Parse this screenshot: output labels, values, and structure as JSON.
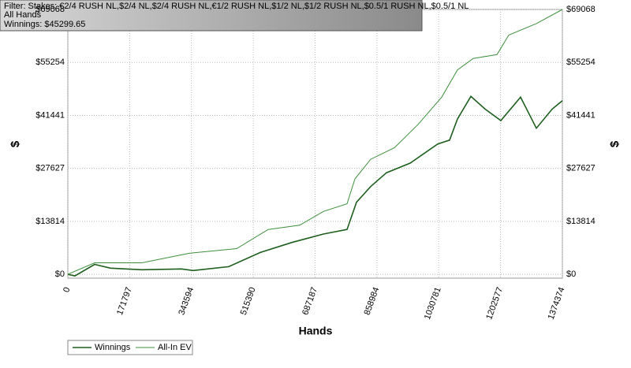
{
  "chart_data": {
    "type": "line",
    "filter_lines": [
      "Filter: Stakes: €2/4 RUSH NL,$2/4 NL,$2/4 RUSH NL,€1/2 RUSH NL,$1/2 NL,$1/2 RUSH NL,$0.5/1 RUSH NL,$0.5/1 NL",
      "All Hands",
      "Winnings: $45299.65"
    ],
    "x_label": "Hands",
    "y_label": "$",
    "y2_label": "$",
    "xlim": [
      0,
      1374374
    ],
    "xticks": [
      0,
      171797,
      343594,
      515390,
      687187,
      858984,
      1030781,
      1202577,
      1374374
    ],
    "ylim": [
      -1000,
      69068
    ],
    "yticks": [
      {
        "value": 0,
        "label": "$0"
      },
      {
        "value": 13814,
        "label": "$13814"
      },
      {
        "value": 27627,
        "label": "$27627"
      },
      {
        "value": 41441,
        "label": "$41441"
      },
      {
        "value": 55254,
        "label": "$55254"
      },
      {
        "value": 69068,
        "label": "$69068"
      }
    ],
    "grid": true,
    "series": [
      {
        "name": "Winnings",
        "color": "#1e5e1e",
        "width": 1.6,
        "x": [
          0,
          19700,
          74600,
          118500,
          206100,
          315700,
          348600,
          447200,
          534900,
          622600,
          710300,
          776000,
          802300,
          841800,
          885600,
          951400,
          1028100,
          1061000,
          1082900,
          1120200,
          1159600,
          1203500,
          1258300,
          1302100,
          1346000,
          1374374
        ],
        "values": [
          0,
          -400,
          2600,
          1600,
          1200,
          1400,
          1000,
          2000,
          5700,
          8300,
          10500,
          11700,
          18800,
          22900,
          26500,
          29000,
          34000,
          35000,
          40500,
          46400,
          43100,
          40100,
          46200,
          38100,
          43100,
          45300
        ]
      },
      {
        "name": "All-In EV",
        "color": "#3d8f3d",
        "width": 1,
        "x": [
          0,
          74600,
          206100,
          337600,
          469100,
          556800,
          644500,
          710300,
          776000,
          797900,
          841800,
          907600,
          973400,
          1039100,
          1082900,
          1126800,
          1192600,
          1225400,
          1302100,
          1374374
        ],
        "values": [
          0,
          3000,
          3000,
          5500,
          6700,
          11700,
          12800,
          16400,
          18400,
          24900,
          30000,
          33000,
          39100,
          46200,
          53300,
          56300,
          57300,
          62400,
          65400,
          69068
        ]
      }
    ]
  }
}
